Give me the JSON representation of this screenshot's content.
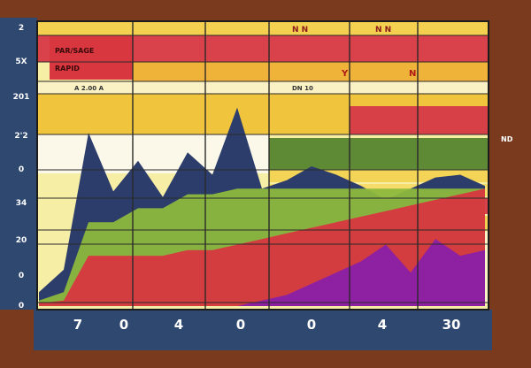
{
  "chart_data": {
    "type": "area",
    "title": "",
    "xlabel": "",
    "ylabel": "",
    "x_tick_labels": [
      "7",
      "0",
      "4",
      "0",
      "0",
      "4",
      "30"
    ],
    "y_tick_labels": [
      "2",
      "5X",
      "201",
      "2'2",
      "0",
      "34",
      "20",
      "0",
      "0"
    ],
    "right_tick_label": "ND",
    "header_labels": [
      "PAR/SAGE",
      "RAPID",
      "N N",
      "N N"
    ],
    "band_labels": [
      "A 2.00 A",
      "DN 10",
      "Y",
      "N"
    ],
    "grid": true,
    "series": [
      {
        "values": [
          0.05,
          0.13,
          0.62,
          0.41,
          0.52,
          0.39,
          0.55,
          0.47,
          0.71,
          0.42,
          0.45,
          0.5,
          0.47,
          0.43,
          0.38,
          0.42,
          0.46,
          0.47,
          0.43
        ]
      },
      {
        "values": [
          0.02,
          0.05,
          0.3,
          0.3,
          0.35,
          0.35,
          0.4,
          0.4,
          0.42,
          0.42,
          0.42,
          0.42,
          0.42,
          0.42,
          0.42,
          0.42,
          0.42,
          0.42,
          0.42
        ]
      },
      {
        "values": [
          0.01,
          0.02,
          0.18,
          0.18,
          0.18,
          0.18,
          0.2,
          0.2,
          0.22,
          0.24,
          0.26,
          0.28,
          0.3,
          0.32,
          0.34,
          0.36,
          0.38,
          0.4,
          0.42
        ]
      },
      {
        "values": [
          0.0,
          0.0,
          0.0,
          0.0,
          0.0,
          0.0,
          0.0,
          0.0,
          0.0,
          0.02,
          0.04,
          0.08,
          0.12,
          0.16,
          0.22,
          0.12,
          0.24,
          0.18,
          0.2
        ]
      }
    ]
  }
}
